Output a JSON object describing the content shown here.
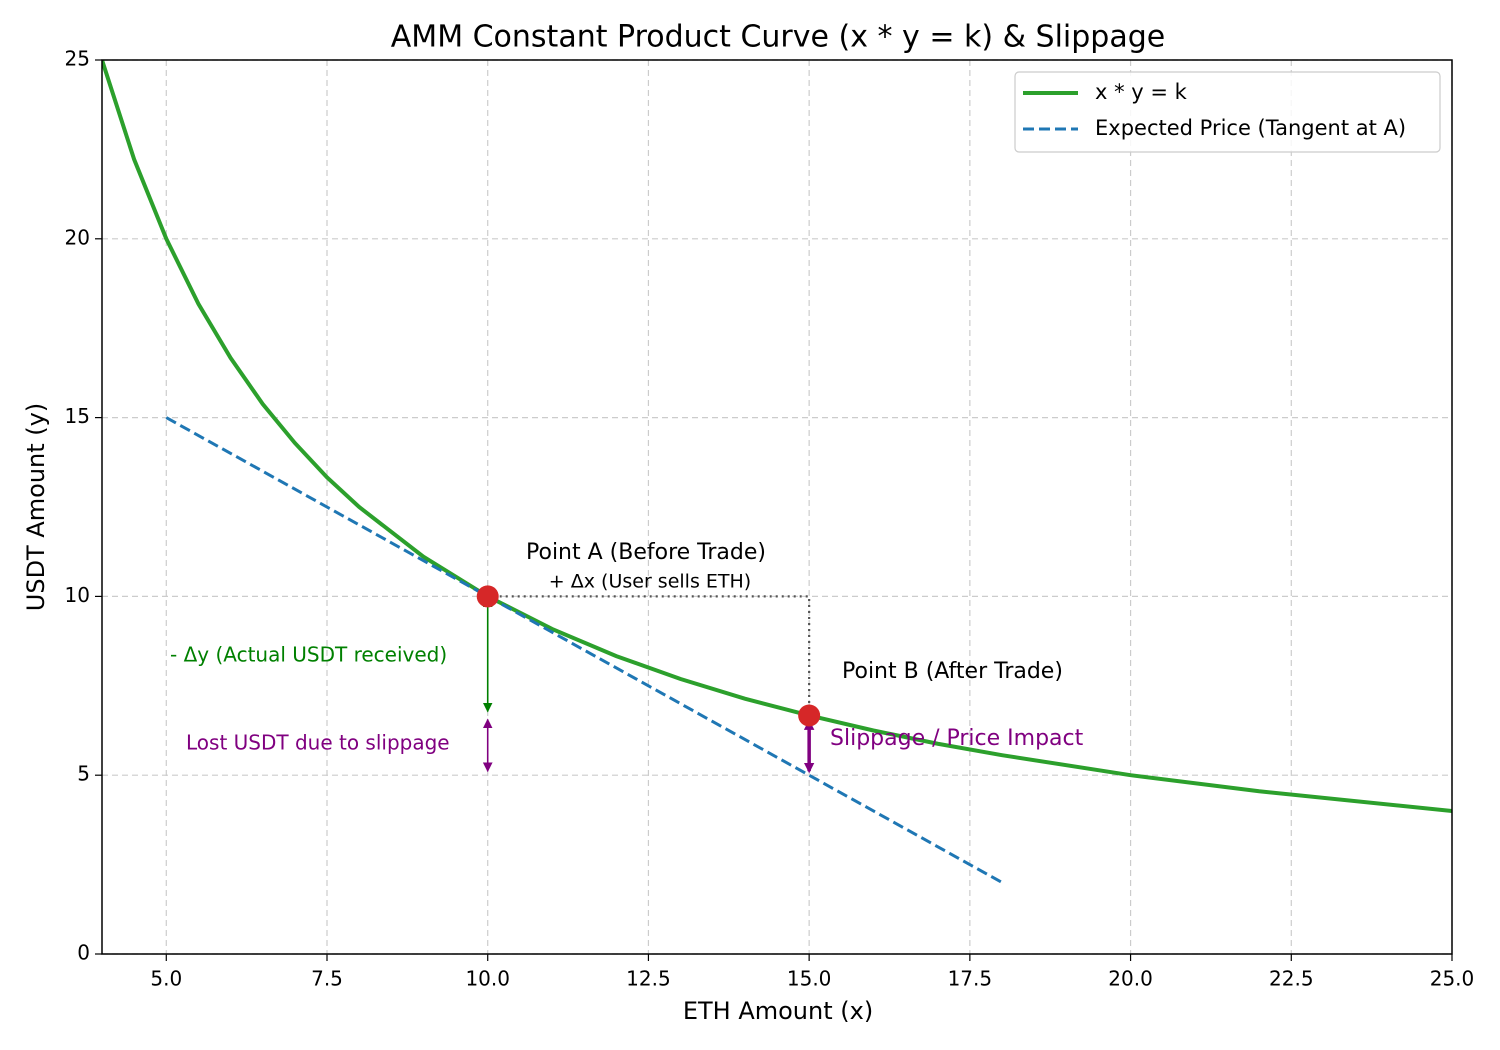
{
  "chart_data": {
    "type": "line",
    "title": "AMM Constant Product Curve (x * y = k) & Slippage",
    "xlabel": "ETH Amount (x)",
    "ylabel": "USDT Amount (y)",
    "xlim": [
      4,
      25
    ],
    "ylim": [
      0,
      25
    ],
    "xticks": [
      {
        "value": 5,
        "label": "5.0"
      },
      7.5,
      {
        "value": 10,
        "label": "10.0"
      },
      12.5,
      {
        "value": 15,
        "label": "15.0"
      },
      17.5,
      {
        "value": 20,
        "label": "20.0"
      },
      22.5,
      {
        "value": 25,
        "label": "25.0"
      }
    ],
    "yticks": [
      0,
      5,
      10,
      15,
      20,
      25
    ],
    "grid": true,
    "legend": "upper right",
    "series": [
      {
        "name": "x * y = k",
        "color": "#2ca02c",
        "style": "solid",
        "x": [
          4,
          4.5,
          5,
          5.5,
          6,
          6.5,
          7,
          7.5,
          8,
          9,
          10,
          11,
          12,
          13,
          14,
          15,
          16,
          17,
          18,
          20,
          22,
          25
        ],
        "values": [
          25,
          22.22,
          20,
          18.18,
          16.67,
          15.38,
          14.29,
          13.33,
          12.5,
          11.11,
          10,
          9.09,
          8.33,
          7.69,
          7.14,
          6.67,
          6.25,
          5.88,
          5.56,
          5,
          4.55,
          4
        ]
      },
      {
        "name": "Expected Price (Tangent at A)",
        "color": "#1f77b4",
        "style": "dashed",
        "x": [
          5,
          15,
          18
        ],
        "values": [
          15,
          5,
          2
        ]
      }
    ],
    "points": {
      "color": "#d62728",
      "x": [
        10,
        15
      ],
      "values": [
        10,
        6.67
      ]
    },
    "annotations": [
      {
        "text": "Point A (Before Trade)",
        "color": "#000000"
      },
      {
        "text": "+ Δx (User sells ETH)",
        "color": "#000000"
      },
      {
        "text": "- Δy (Actual USDT received)",
        "color": "#008000"
      },
      {
        "text": "Lost USDT due to slippage",
        "color": "#800080"
      },
      {
        "text": "Point B (After Trade)",
        "color": "#000000"
      },
      {
        "text": "Slippage / Price Impact",
        "color": "#800080"
      }
    ]
  }
}
